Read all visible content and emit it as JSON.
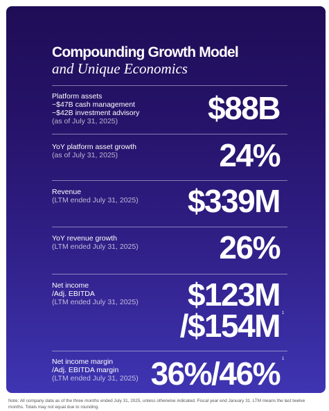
{
  "title": "Compounding Growth Model",
  "subtitle": "and Unique Economics",
  "metrics": [
    {
      "label_lines": [
        "Platform assets",
        "~$47B cash management",
        "~$42B investment advisory"
      ],
      "note": "(as of July 31, 2025)",
      "value": "$88B"
    },
    {
      "label_lines": [
        "YoY platform asset growth"
      ],
      "note": "(as of July 31, 2025)",
      "value": "24%"
    },
    {
      "label_lines": [
        "Revenue"
      ],
      "note": "(LTM ended July 31, 2025)",
      "value": "$339M"
    },
    {
      "label_lines": [
        "YoY revenue growth"
      ],
      "note": "(LTM ended July 31, 2025)",
      "value": "26%"
    },
    {
      "label_lines": [
        "Net income",
        "/Adj. EBITDA"
      ],
      "note": "(LTM ended July 31, 2025)",
      "value_lines": [
        "$123M",
        "/$154M"
      ],
      "superscript": "1"
    },
    {
      "label_lines": [
        "Net income margin",
        "/Adj. EBITDA margin"
      ],
      "note": "(LTM ended July 31, 2025)",
      "value": "36%/46%",
      "superscript": "1"
    }
  ],
  "footnote": "Note: All company data as of the three months ended July 31, 2025, unless otherwise indicated. Fiscal year end January 31. LTM means the last twelve months. Totals may not equal due to rounding."
}
